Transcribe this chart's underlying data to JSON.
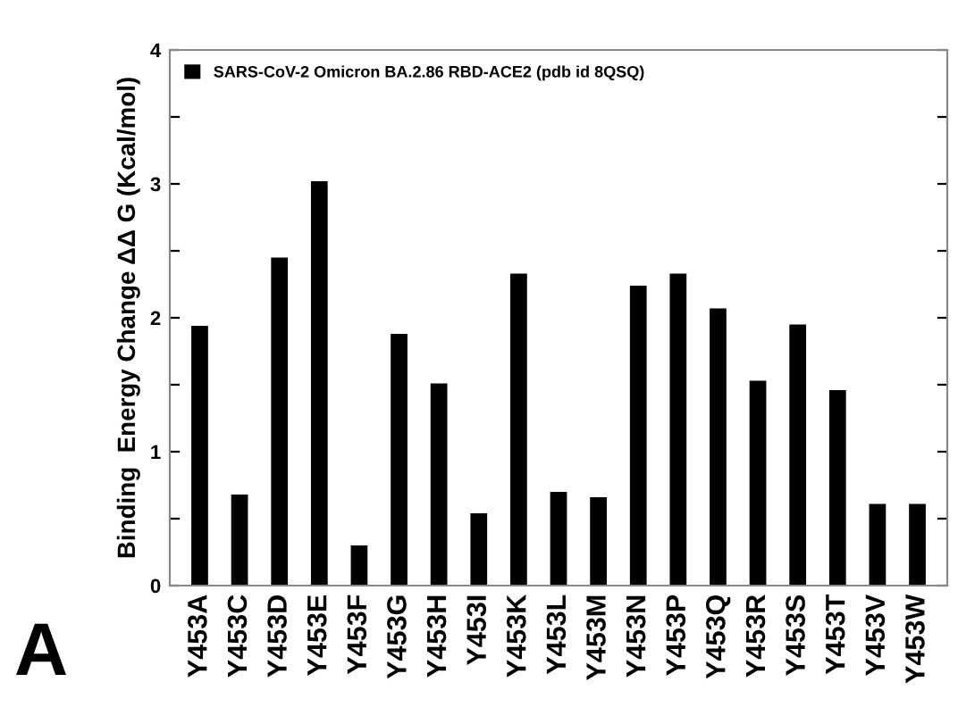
{
  "chart_data": {
    "type": "bar",
    "ylabel": "Binding  Energy Change ΔΔ G (Kcal/mol)",
    "annotations": [
      "A"
    ],
    "categories": [
      "Y453A",
      "Y453C",
      "Y453D",
      "Y453E",
      "Y453F",
      "Y453G",
      "Y453H",
      "Y453I",
      "Y453K",
      "Y453L",
      "Y453M",
      "Y453N",
      "Y453P",
      "Y453Q",
      "Y453R",
      "Y453S",
      "Y453T",
      "Y453V",
      "Y453W"
    ],
    "series": [
      {
        "name": "SARS-CoV-2 Omicron BA.2.86 RBD-ACE2 (pdb id 8QSQ)",
        "color": "#000000",
        "values": [
          1.94,
          0.68,
          2.45,
          3.02,
          0.3,
          1.88,
          1.51,
          0.54,
          2.33,
          0.7,
          0.66,
          2.24,
          2.33,
          2.07,
          1.53,
          1.95,
          1.46,
          0.61,
          0.61
        ]
      }
    ],
    "ylim": [
      0,
      4
    ],
    "yticks": [
      0,
      {
        "value": 0.5,
        "label": null
      },
      1,
      {
        "value": 1.5,
        "label": null
      },
      2,
      {
        "value": 2.5,
        "label": null
      },
      3,
      {
        "value": 3.5,
        "label": null
      },
      4
    ],
    "legend": "top left",
    "grid": false
  }
}
